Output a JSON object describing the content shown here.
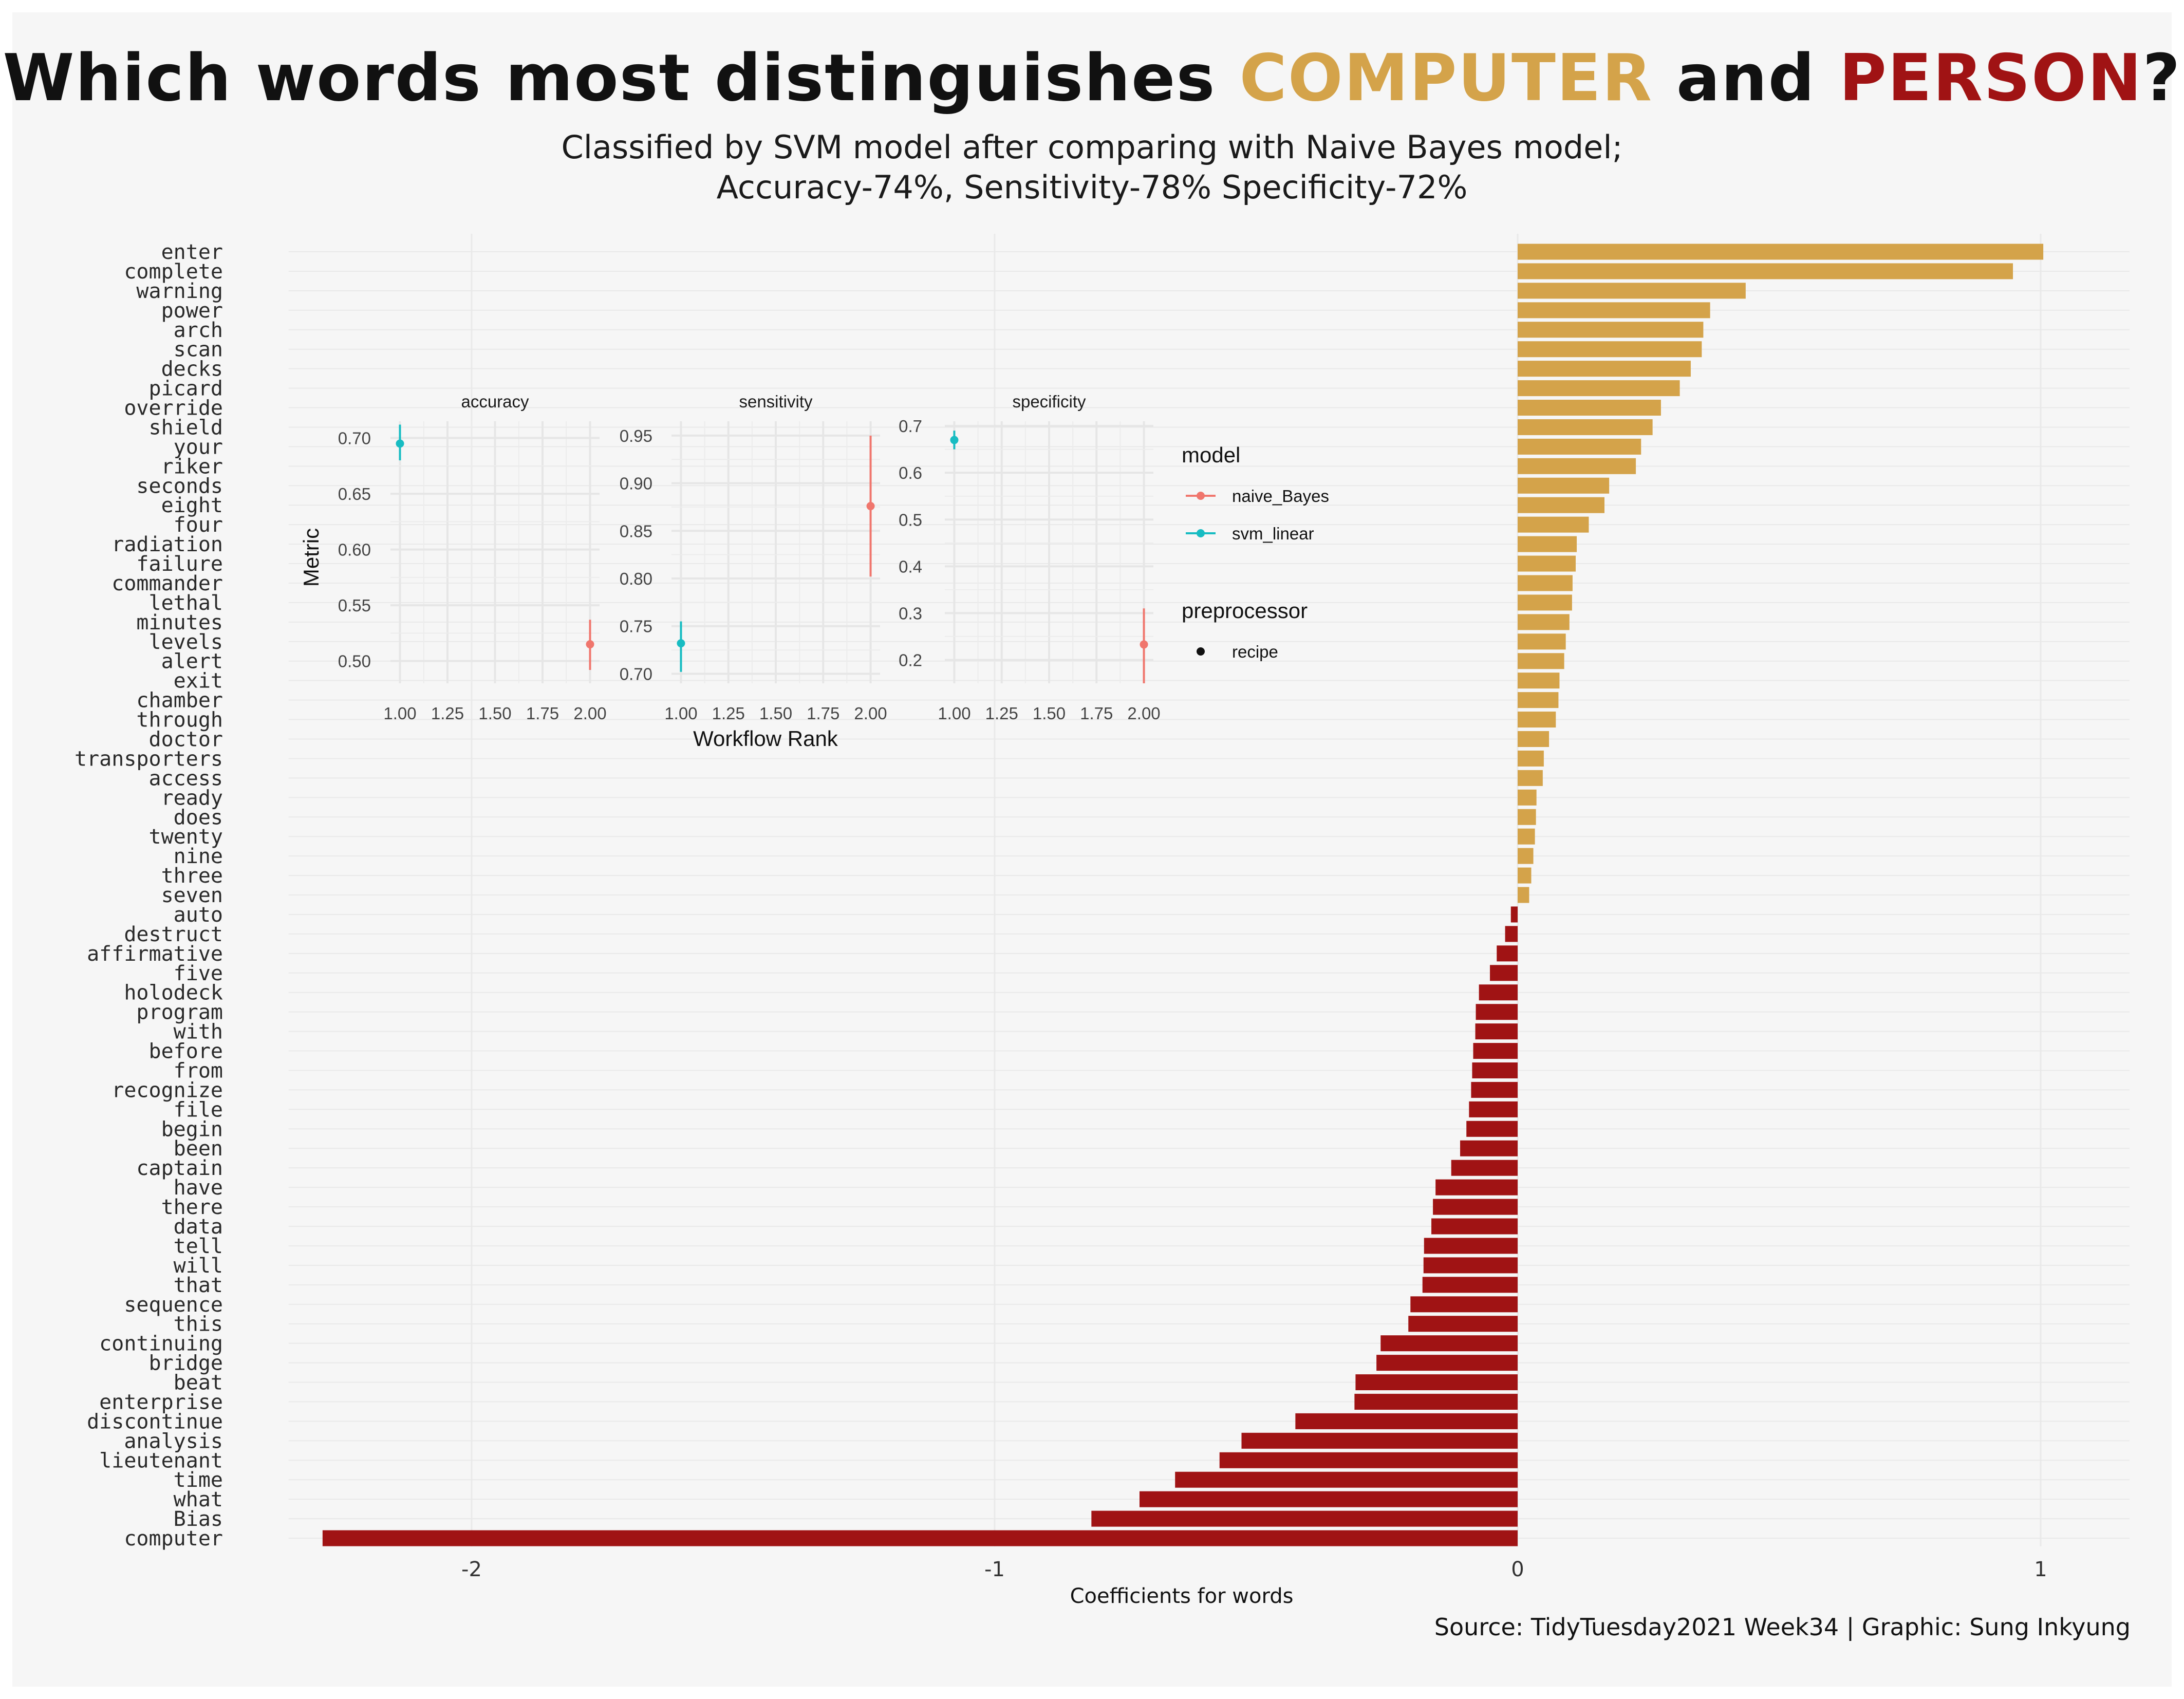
{
  "title": {
    "prefix": "Which words most distinguishes ",
    "computer": "COMPUTER",
    "mid": " and ",
    "person": "PERSON",
    "suffix": "?"
  },
  "subtitle": [
    "Classified by SVM model after comparing with Naive Bayes model;",
    "Accuracy-74%, Sensitivity-78% Specificity-72%"
  ],
  "caption": "Source: TidyTuesday2021 Week34 | Graphic: Sung Inkyung",
  "colors": {
    "computer": "#d4a34a",
    "person": "#a01314",
    "naive_Bayes": "#f0766d",
    "svm_linear": "#17bcc2",
    "panel": "#f6f6f6",
    "grid": "#e9e9e9"
  },
  "chart_data": [
    {
      "type": "bar",
      "orientation": "horizontal",
      "xlabel": "Coefficients for words",
      "ylabel": "",
      "xlim": [
        -2.35,
        1.17
      ],
      "xticks": [
        -2,
        -1,
        0,
        1
      ],
      "categories": [
        "enter",
        "complete",
        "warning",
        "power",
        "arch",
        "scan",
        "decks",
        "picard",
        "override",
        "shield",
        "your",
        "riker",
        "seconds",
        "eight",
        "four",
        "radiation",
        "failure",
        "commander",
        "lethal",
        "minutes",
        "levels",
        "alert",
        "exit",
        "chamber",
        "through",
        "doctor",
        "transporters",
        "access",
        "ready",
        "does",
        "twenty",
        "nine",
        "three",
        "seven",
        "auto",
        "destruct",
        "affirmative",
        "five",
        "holodeck",
        "program",
        "with",
        "before",
        "from",
        "recognize",
        "file",
        "begin",
        "been",
        "captain",
        "have",
        "there",
        "data",
        "tell",
        "will",
        "that",
        "sequence",
        "this",
        "continuing",
        "bridge",
        "beat",
        "enterprise",
        "discontinue",
        "analysis",
        "lieutenant",
        "time",
        "what",
        "Bias",
        "computer"
      ],
      "values": [
        1.005,
        0.947,
        0.436,
        0.368,
        0.355,
        0.352,
        0.331,
        0.31,
        0.274,
        0.258,
        0.236,
        0.226,
        0.175,
        0.166,
        0.136,
        0.113,
        0.111,
        0.105,
        0.104,
        0.099,
        0.092,
        0.089,
        0.08,
        0.078,
        0.073,
        0.06,
        0.05,
        0.048,
        0.036,
        0.035,
        0.033,
        0.03,
        0.026,
        0.022,
        -0.013,
        -0.024,
        -0.04,
        -0.053,
        -0.074,
        -0.08,
        -0.081,
        -0.085,
        -0.087,
        -0.089,
        -0.093,
        -0.098,
        -0.11,
        -0.127,
        -0.157,
        -0.162,
        -0.165,
        -0.179,
        -0.18,
        -0.182,
        -0.205,
        -0.209,
        -0.262,
        -0.27,
        -0.31,
        -0.312,
        -0.425,
        -0.528,
        -0.57,
        -0.655,
        -0.723,
        -0.815,
        -2.285
      ]
    },
    {
      "type": "scatter",
      "facets": [
        "accuracy",
        "sensitivity",
        "specificity"
      ],
      "xlabel": "Workflow Rank",
      "ylabel": "Metric",
      "xticks": [
        1.0,
        1.25,
        1.5,
        1.75,
        2.0
      ],
      "xlim": [
        0.95,
        2.05
      ],
      "panels": [
        {
          "name": "accuracy",
          "ylim": [
            0.48,
            0.715
          ],
          "yticks": [
            0.5,
            0.55,
            0.6,
            0.65,
            0.7
          ],
          "points": [
            {
              "model": "svm_linear",
              "x": 1,
              "y": 0.695,
              "lo": 0.68,
              "hi": 0.712
            },
            {
              "model": "naive_Bayes",
              "x": 2,
              "y": 0.515,
              "lo": 0.492,
              "hi": 0.537
            }
          ]
        },
        {
          "name": "sensitivity",
          "ylim": [
            0.69,
            0.965
          ],
          "yticks": [
            0.7,
            0.75,
            0.8,
            0.85,
            0.9,
            0.95
          ],
          "points": [
            {
              "model": "svm_linear",
              "x": 1,
              "y": 0.732,
              "lo": 0.702,
              "hi": 0.755
            },
            {
              "model": "naive_Bayes",
              "x": 2,
              "y": 0.876,
              "lo": 0.802,
              "hi": 0.95
            }
          ]
        },
        {
          "name": "specificity",
          "ylim": [
            0.15,
            0.71
          ],
          "yticks": [
            0.2,
            0.3,
            0.4,
            0.5,
            0.6,
            0.7
          ],
          "points": [
            {
              "model": "svm_linear",
              "x": 1,
              "y": 0.67,
              "lo": 0.65,
              "hi": 0.69
            },
            {
              "model": "naive_Bayes",
              "x": 2,
              "y": 0.233,
              "lo": 0.15,
              "hi": 0.31
            }
          ]
        }
      ],
      "legend": {
        "model_title": "model",
        "models": [
          "naive_Bayes",
          "svm_linear"
        ],
        "preprocessor_title": "preprocessor",
        "preprocessors": [
          "recipe"
        ]
      }
    }
  ]
}
